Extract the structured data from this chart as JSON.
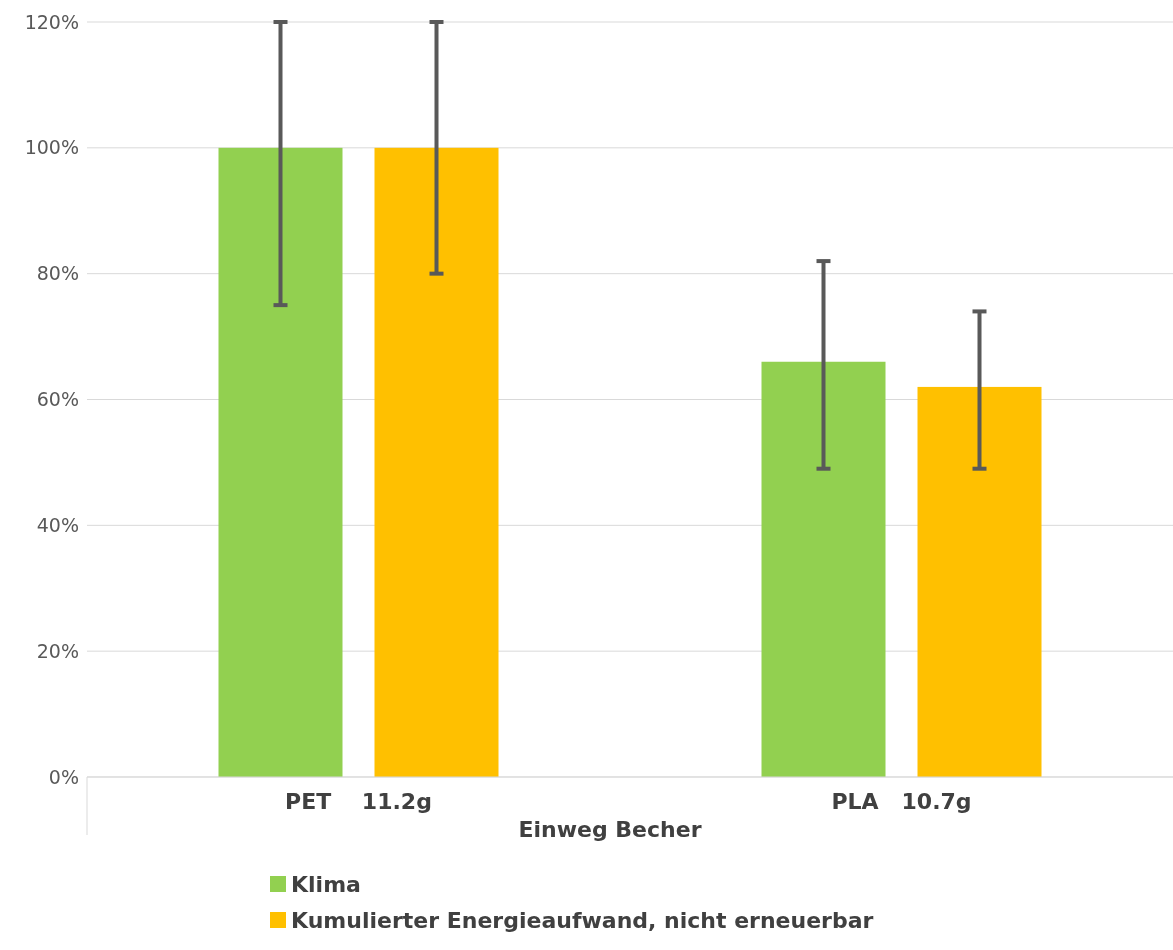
{
  "chart_data": {
    "type": "bar",
    "xlabel": "Einweg Becher",
    "categories": [
      "PET    11.2g",
      "PLA   10.7g"
    ],
    "series": [
      {
        "name": "Klima",
        "color": "#92d050",
        "values": [
          100,
          66
        ],
        "errors": [
          [
            75,
            120
          ],
          [
            49,
            82
          ]
        ]
      },
      {
        "name": "Kumulierter Energieaufwand, nicht erneuerbar",
        "color": "#ffc000",
        "values": [
          100,
          62
        ],
        "errors": [
          [
            80,
            120
          ],
          [
            49,
            74
          ]
        ]
      }
    ],
    "ylim": [
      0,
      120
    ],
    "yticks": [
      {
        "value": 0,
        "label": "0%"
      },
      {
        "value": 20,
        "label": "20%"
      },
      {
        "value": 40,
        "label": "40%"
      },
      {
        "value": 60,
        "label": "60%"
      },
      {
        "value": 80,
        "label": "80%"
      },
      {
        "value": 100,
        "label": "100%"
      },
      {
        "value": 120,
        "label": "120%"
      }
    ],
    "grid": "y",
    "legend": "bottom"
  }
}
